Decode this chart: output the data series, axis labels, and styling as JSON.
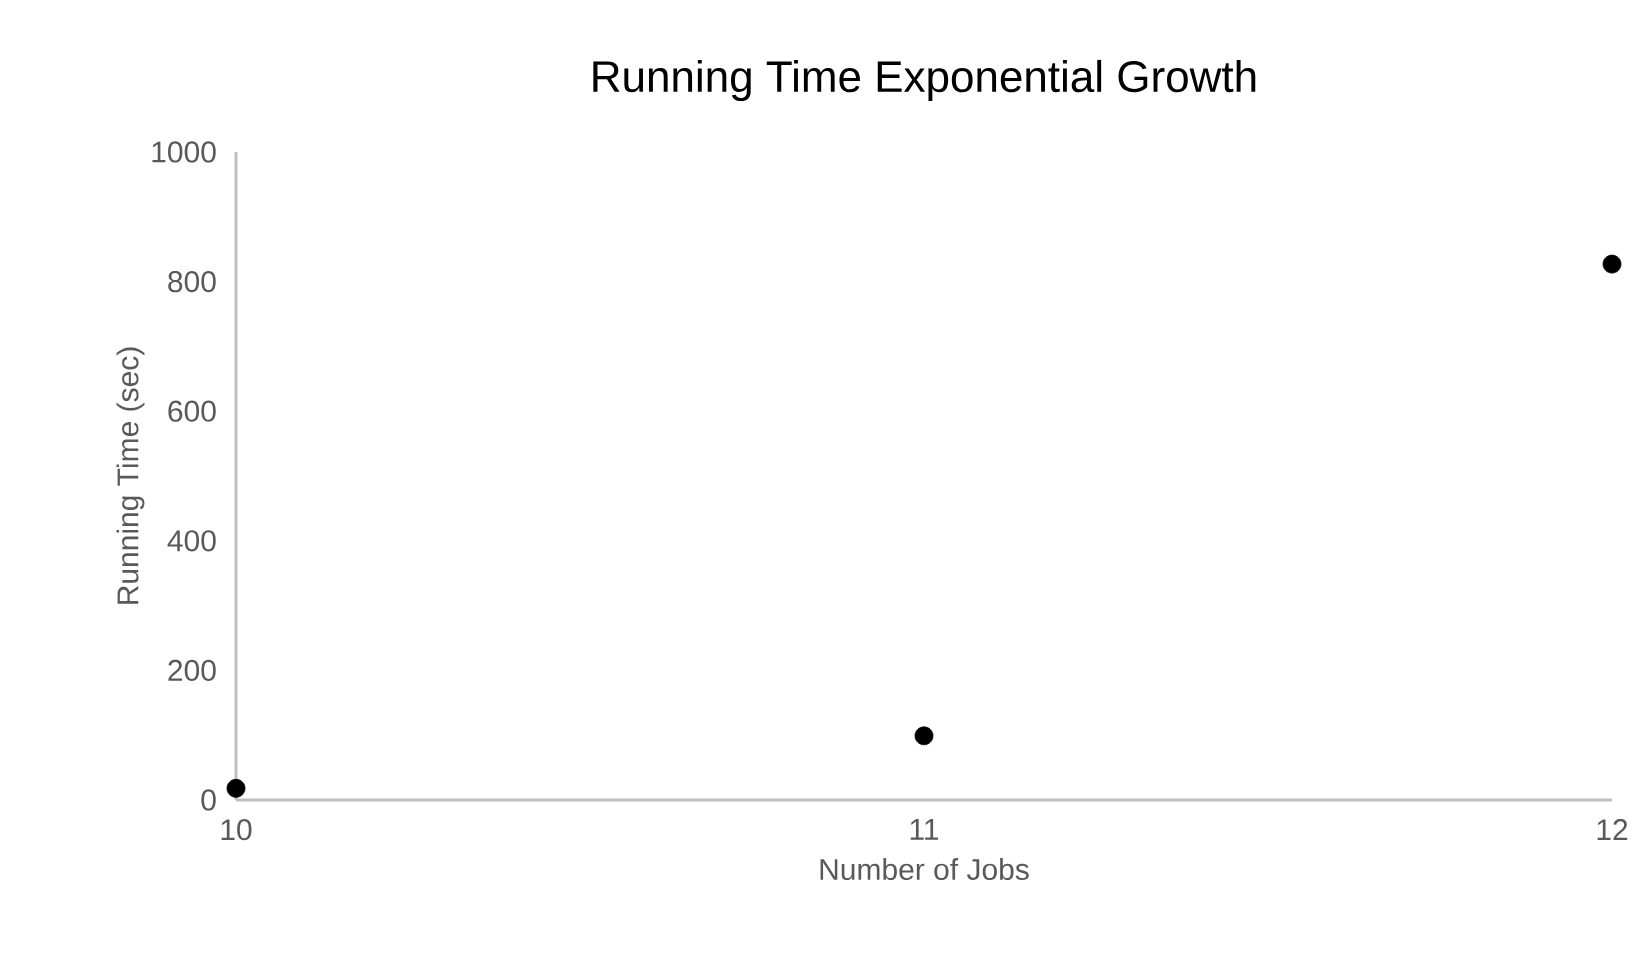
{
  "chart_data": {
    "type": "scatter",
    "title": "Running Time Exponential Growth",
    "xlabel": "Number of Jobs",
    "ylabel": "Running Time (sec)",
    "x": [
      10,
      11,
      12
    ],
    "values": [
      18,
      99,
      827
    ],
    "color": "#000000",
    "marker": "circle",
    "xlim": [
      10,
      12
    ],
    "xticks": [
      10,
      11,
      12
    ],
    "ylim": [
      0,
      1000
    ],
    "yticks": [
      0,
      200,
      400,
      600,
      800,
      1000
    ],
    "grid": false
  }
}
